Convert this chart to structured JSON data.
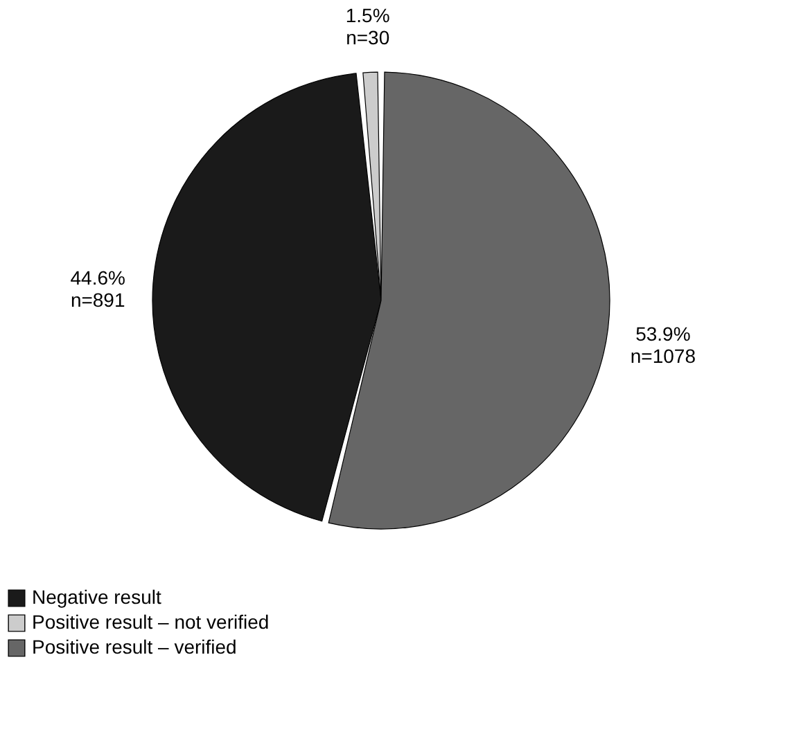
{
  "chart_data": {
    "type": "pie",
    "categories": [
      "Negative result",
      "Positive result – not verified",
      "Positive result – verified"
    ],
    "values": [
      891,
      30,
      1078
    ],
    "value_labels": [
      "44.6%\nn=891",
      "1.5%\nn=30",
      "53.9%\nn=1078"
    ],
    "colors": [
      "#1a1a1a",
      "#cccccc",
      "#666666"
    ],
    "legend": "bottom"
  }
}
